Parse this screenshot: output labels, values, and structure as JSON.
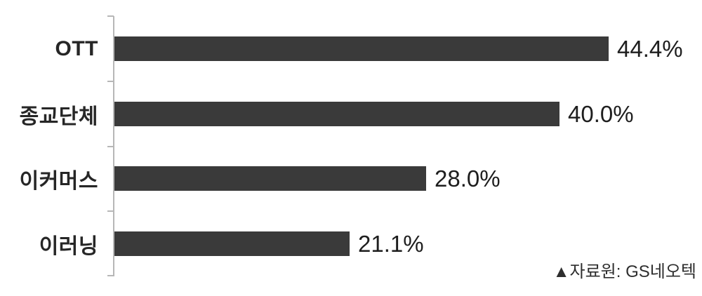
{
  "chart_data": {
    "type": "bar",
    "orientation": "horizontal",
    "categories": [
      "OTT",
      "종교단체",
      "이커머스",
      "이러닝"
    ],
    "values": [
      44.4,
      40.0,
      28.0,
      21.1
    ],
    "value_labels": [
      "44.4%",
      "40.0%",
      "28.0%",
      "21.1%"
    ],
    "xlim": [
      0,
      50
    ],
    "grid": false,
    "legend": false,
    "bar_color": "#3a3a3a",
    "axis_color": "#b7b7b7",
    "value_label_color": "#1e1e1e",
    "category_label_color": "#262626",
    "source_note": "▲자료원: GS네오텍"
  }
}
